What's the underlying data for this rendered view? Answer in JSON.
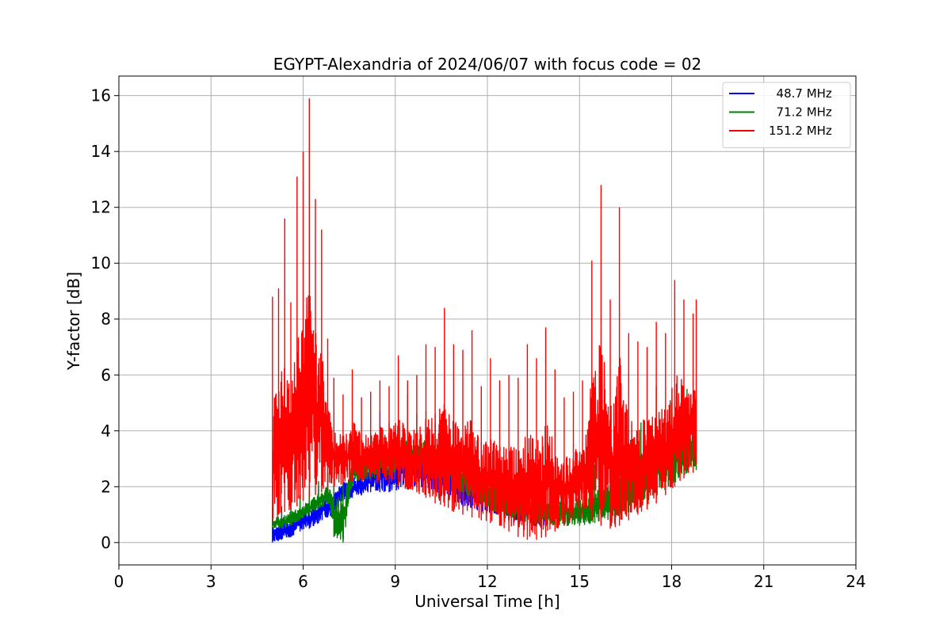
{
  "chart_data": {
    "type": "line",
    "title": "EGYPT-Alexandria of 2024/06/07 with focus code = 02",
    "xlabel": "Universal Time [h]",
    "ylabel": "Y-factor [dB]",
    "xlim": [
      0,
      24
    ],
    "ylim": [
      -0.8,
      16.7
    ],
    "xticks": [
      0,
      3,
      6,
      9,
      12,
      15,
      18,
      21,
      24
    ],
    "yticks": [
      0,
      2,
      4,
      6,
      8,
      10,
      12,
      14,
      16
    ],
    "grid": true,
    "legend_position": "top-right",
    "series": [
      {
        "name": "  48.7 MHz",
        "color": "#0000ff",
        "x": [
          5.0,
          5.3,
          5.6,
          5.9,
          6.2,
          6.5,
          6.8,
          7.0,
          7.3,
          7.6,
          7.9,
          8.2,
          8.5,
          8.8,
          9.1,
          9.4,
          9.7,
          10.0,
          10.3,
          10.6,
          10.9,
          11.2,
          11.5,
          11.8,
          12.1,
          12.4,
          12.7,
          13.0,
          13.3,
          13.6,
          13.9
        ],
        "low": [
          0.0,
          0.1,
          0.2,
          0.4,
          0.5,
          0.7,
          0.9,
          1.0,
          1.5,
          1.6,
          1.7,
          1.8,
          1.8,
          1.8,
          1.9,
          1.9,
          2.0,
          1.9,
          1.8,
          1.6,
          1.5,
          1.3,
          1.2,
          1.1,
          1.0,
          0.9,
          0.8,
          0.7,
          0.6,
          0.6,
          0.6
        ],
        "high": [
          1.0,
          1.1,
          1.3,
          1.5,
          1.7,
          2.0,
          2.2,
          2.5,
          2.7,
          2.9,
          3.1,
          3.3,
          4.7,
          3.6,
          3.8,
          5.3,
          4.0,
          4.2,
          4.3,
          4.0,
          4.3,
          3.4,
          3.2,
          3.6,
          3.0,
          2.8,
          2.6,
          3.3,
          2.5,
          2.8,
          2.4
        ]
      },
      {
        "name": "  71.2 MHz",
        "color": "#008000",
        "x": [
          5.0,
          5.3,
          5.6,
          5.9,
          6.2,
          6.5,
          6.8,
          7.0,
          7.3,
          7.6,
          7.9,
          8.2,
          8.5,
          8.8,
          9.1,
          9.4,
          9.7,
          10.0,
          10.3,
          10.6,
          10.9,
          11.2,
          11.5,
          11.8,
          12.1,
          12.4,
          12.7,
          13.0,
          13.3,
          13.6,
          13.9,
          14.5,
          15.0,
          15.5,
          16.0,
          16.5,
          17.0,
          17.5,
          18.0,
          18.5,
          18.8
        ],
        "low": [
          0.5,
          0.5,
          0.6,
          0.8,
          1.0,
          1.2,
          1.4,
          0.2,
          0.0,
          2.0,
          2.2,
          2.3,
          2.3,
          2.4,
          2.5,
          2.6,
          2.6,
          2.5,
          2.4,
          2.2,
          2.0,
          1.8,
          1.6,
          1.4,
          1.2,
          1.0,
          0.9,
          0.8,
          0.7,
          0.6,
          0.6,
          0.6,
          0.6,
          0.7,
          0.8,
          1.0,
          1.3,
          1.6,
          2.0,
          2.5,
          2.6
        ],
        "high": [
          1.3,
          1.3,
          1.5,
          1.7,
          1.9,
          2.2,
          2.5,
          2.9,
          3.2,
          3.5,
          3.7,
          3.9,
          4.1,
          4.3,
          4.4,
          4.5,
          4.6,
          4.7,
          4.6,
          4.4,
          4.0,
          3.6,
          3.3,
          3.0,
          2.8,
          2.6,
          2.5,
          2.4,
          2.3,
          2.2,
          2.2,
          2.3,
          2.5,
          2.8,
          3.2,
          3.7,
          4.3,
          5.6,
          5.0,
          5.5,
          5.2
        ]
      },
      {
        "name": "151.2 MHz",
        "color": "#ff0000",
        "x": [
          5.0,
          5.2,
          5.4,
          5.6,
          5.8,
          6.0,
          6.2,
          6.4,
          6.6,
          6.8,
          7.0,
          7.3,
          7.6,
          7.9,
          8.2,
          8.5,
          8.8,
          9.1,
          9.4,
          9.7,
          10.0,
          10.3,
          10.6,
          10.9,
          11.2,
          11.5,
          11.8,
          12.1,
          12.4,
          12.7,
          13.0,
          13.3,
          13.6,
          13.9,
          14.2,
          14.5,
          14.8,
          15.1,
          15.4,
          15.7,
          16.0,
          16.3,
          16.6,
          16.9,
          17.2,
          17.5,
          17.8,
          18.1,
          18.4,
          18.7,
          18.8
        ],
        "low": [
          0.7,
          1.0,
          1.1,
          1.2,
          1.3,
          1.5,
          1.6,
          1.7,
          1.8,
          1.9,
          2.0,
          2.1,
          2.2,
          2.2,
          2.2,
          2.1,
          2.1,
          2.0,
          1.9,
          1.8,
          1.6,
          1.4,
          1.3,
          1.1,
          1.0,
          0.9,
          0.8,
          0.7,
          0.6,
          0.4,
          0.2,
          0.1,
          0.1,
          0.2,
          0.4,
          0.6,
          0.8,
          0.9,
          0.8,
          0.6,
          0.5,
          0.6,
          0.8,
          1.0,
          1.2,
          1.4,
          1.7,
          2.0,
          2.3,
          2.5,
          2.8
        ],
        "high": [
          8.8,
          9.1,
          11.6,
          8.6,
          13.1,
          14.0,
          15.9,
          12.3,
          11.2,
          7.3,
          5.9,
          5.3,
          6.2,
          5.2,
          5.4,
          5.8,
          5.6,
          6.7,
          5.8,
          6.0,
          7.1,
          7.0,
          8.4,
          7.1,
          6.9,
          7.6,
          5.6,
          6.6,
          5.8,
          6.0,
          5.9,
          7.1,
          6.6,
          7.7,
          6.2,
          5.2,
          5.4,
          5.8,
          10.1,
          12.8,
          8.7,
          12.0,
          7.5,
          7.2,
          7.0,
          7.9,
          7.5,
          9.4,
          8.7,
          8.2,
          8.7
        ]
      }
    ]
  }
}
